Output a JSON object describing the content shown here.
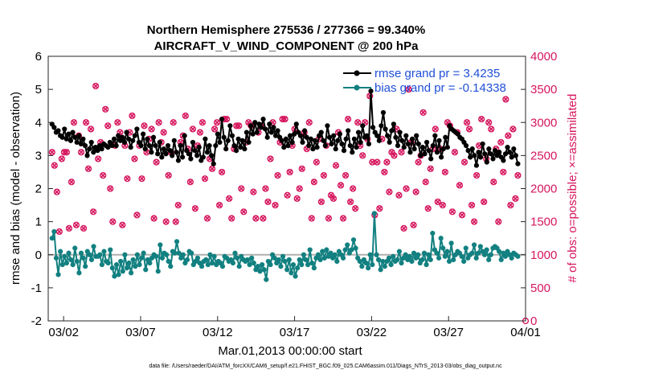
{
  "chart_data": {
    "type": "line",
    "title_line1": "Northern Hemisphere 275536 / 277366 = 99.340%",
    "title_line2": "AIRCRAFT_V_WIND_COMPONENT @ 200 hPa",
    "ylabel": "rmse and bias (model - observation)",
    "y2label": "# of obs: o=possible; ×=assimilated",
    "xlabel": "Mar.01,2013 00:00:00 start",
    "footnote": "data file: /Users/raeder/DAI/ATM_forcXX/CAM6_setup/f.e21.FHIST_BGC.f09_025.CAM6assim.011/Diags_NTrS_2013-03/obs_diag_output.nc",
    "ylim": [
      -2,
      6
    ],
    "y2lim": [
      0,
      4000
    ],
    "xlim": [
      0,
      31
    ],
    "x_ticks": [
      {
        "value": 1,
        "label": "03/02"
      },
      {
        "value": 6,
        "label": "03/07"
      },
      {
        "value": 11,
        "label": "03/12"
      },
      {
        "value": 16,
        "label": "03/17"
      },
      {
        "value": 21,
        "label": "03/22"
      },
      {
        "value": 26,
        "label": "03/27"
      },
      {
        "value": 31,
        "label": "04/01"
      }
    ],
    "y_ticks": [
      {
        "value": 6,
        "label": "6"
      },
      {
        "value": 5,
        "label": "5"
      },
      {
        "value": 4,
        "label": "4"
      },
      {
        "value": 3,
        "label": "3"
      },
      {
        "value": 2,
        "label": "2"
      },
      {
        "value": 1,
        "label": "1"
      },
      {
        "value": 0,
        "label": "0"
      },
      {
        "value": -1,
        "label": "-1"
      },
      {
        "value": -2,
        "label": "-2"
      }
    ],
    "y2_ticks": [
      {
        "value": 4000,
        "label": "4000"
      },
      {
        "value": 3500,
        "label": "3500"
      },
      {
        "value": 3000,
        "label": "3000"
      },
      {
        "value": 2500,
        "label": "2500"
      },
      {
        "value": 2000,
        "label": "2000"
      },
      {
        "value": 1500,
        "label": "1500"
      },
      {
        "value": 1000,
        "label": "1000"
      },
      {
        "value": 500,
        "label": "500"
      },
      {
        "value": 0,
        "label": "0"
      }
    ],
    "legend_position": "top-right",
    "series": [
      {
        "name": "rmse grand pr = 3.4235",
        "color": "#000000",
        "axis": "left",
        "style": "line-marker",
        "values": [
          3.95,
          3.85,
          3.7,
          3.75,
          3.6,
          3.55,
          3.8,
          3.5,
          3.65,
          3.45,
          3.7,
          3.55,
          3.4,
          3.6,
          3.35,
          3.5,
          3.3,
          3.0,
          3.2,
          3.4,
          3.1,
          3.25,
          3.15,
          3.3,
          3.2,
          3.35,
          3.3,
          3.25,
          3.4,
          3.3,
          3.5,
          3.3,
          3.6,
          3.45,
          3.55,
          3.4,
          3.7,
          3.5,
          3.25,
          3.45,
          3.6,
          3.8,
          3.4,
          3.3,
          3.65,
          3.2,
          3.5,
          3.3,
          3.1,
          3.55,
          3.3,
          3.05,
          3.4,
          2.95,
          3.2,
          3.05,
          3.3,
          3.15,
          3.0,
          3.45,
          3.1,
          2.85,
          3.3,
          2.95,
          3.6,
          3.15,
          3.05,
          2.9,
          3.4,
          3.15,
          3.0,
          3.25,
          2.85,
          2.95,
          3.5,
          3.1,
          3.3,
          3.0,
          2.75,
          3.3,
          3.65,
          3.4,
          4.1,
          3.55,
          3.2,
          3.45,
          3.9,
          3.6,
          3.3,
          3.15,
          3.5,
          3.25,
          3.45,
          3.2,
          3.7,
          3.4,
          3.9,
          3.65,
          4.0,
          3.7,
          3.95,
          3.85,
          4.1,
          3.8,
          3.55,
          3.95,
          3.7,
          3.85,
          3.6,
          3.75,
          3.55,
          3.45,
          3.25,
          3.5,
          3.3,
          3.6,
          3.4,
          3.65,
          3.95,
          3.7,
          3.6,
          3.4,
          3.75,
          3.55,
          3.3,
          3.5,
          3.2,
          3.45,
          3.25,
          3.6,
          3.7,
          3.45,
          3.3,
          3.9,
          3.55,
          3.35,
          3.6,
          3.2,
          3.45,
          3.65,
          3.35,
          3.15,
          3.5,
          3.75,
          3.3,
          3.1,
          3.5,
          3.25,
          3.7,
          3.4,
          3.9,
          3.55,
          3.6,
          3.35,
          4.95,
          3.85,
          3.7,
          3.6,
          3.45,
          3.9,
          4.3,
          3.8,
          3.6,
          3.4,
          3.75,
          3.95,
          3.55,
          3.3,
          3.7,
          3.45,
          3.25,
          3.6,
          3.35,
          3.1,
          3.5,
          3.2,
          3.6,
          3.35,
          3.0,
          3.25,
          3.05,
          3.4,
          3.15,
          2.9,
          3.3,
          3.6,
          3.1,
          3.45,
          2.95,
          3.2,
          3.55,
          3.25,
          3.9,
          3.8,
          3.75,
          3.7,
          3.65,
          3.55,
          3.5,
          3.4,
          3.3,
          3.15,
          2.95,
          3.2,
          3.0,
          2.7,
          3.1,
          2.95,
          3.35,
          3.05,
          2.8,
          3.2,
          3.05,
          2.9,
          3.15,
          3.0,
          3.1,
          2.95,
          2.85,
          3.05,
          3.25,
          3.1,
          2.95,
          3.2,
          3.0,
          2.75
        ]
      },
      {
        "name": "bias grand pr = -0.14338",
        "color": "#128080",
        "axis": "left",
        "style": "line-marker",
        "values": [
          0.5,
          0.7,
          -0.1,
          -0.6,
          0.1,
          -0.3,
          -0.05,
          -0.25,
          0.05,
          -0.15,
          -0.3,
          0.2,
          -0.2,
          -0.55,
          0.05,
          -0.1,
          -0.35,
          0.1,
          0.0,
          -0.15,
          0.25,
          -0.05,
          -0.05,
          0.0,
          -0.3,
          0.1,
          -0.2,
          -0.25,
          0.15,
          -0.4,
          -0.65,
          -0.3,
          -0.6,
          -0.2,
          -0.5,
          0.0,
          -0.4,
          -0.25,
          -0.55,
          -0.15,
          -0.35,
          0.0,
          -0.3,
          -0.1,
          0.05,
          -0.45,
          -0.15,
          -0.25,
          -0.1,
          0.0,
          -0.05,
          -0.5,
          0.3,
          -0.1,
          0.05,
          0.0,
          -0.2,
          -0.35,
          0.1,
          0.05,
          0.4,
          0.05,
          -0.1,
          0.0,
          -0.25,
          -0.15,
          0.1,
          0.05,
          -0.3,
          -0.2,
          -0.1,
          -0.25,
          -0.35,
          -0.2,
          -0.15,
          -0.3,
          0.0,
          -0.25,
          -0.05,
          -0.3,
          -0.2,
          -0.25,
          -0.35,
          -0.05,
          -0.1,
          -0.2,
          -0.15,
          -0.25,
          0.05,
          -0.1,
          -0.35,
          -0.05,
          -0.15,
          -0.2,
          -0.15,
          -0.3,
          -0.1,
          -0.25,
          -0.45,
          -0.35,
          -0.5,
          -0.3,
          -0.45,
          -0.75,
          -0.2,
          -0.3,
          0.0,
          -0.1,
          -0.25,
          -0.15,
          -0.35,
          -0.05,
          -0.2,
          -0.45,
          -0.15,
          -0.55,
          -0.3,
          -0.65,
          -0.4,
          -0.15,
          -0.3,
          0.0,
          -0.15,
          -0.3,
          0.15,
          -0.25,
          -0.4,
          -0.1,
          0.0,
          -0.15,
          0.1,
          -0.1,
          0.15,
          -0.05,
          0.05,
          -0.1,
          0.0,
          -0.2,
          0.1,
          0.0,
          -0.1,
          0.15,
          0.3,
          0.05,
          0.15,
          0.45,
          0.2,
          -0.1,
          -0.2,
          -0.35,
          -0.15,
          -0.25,
          -0.4,
          0.0,
          -0.3,
          1.25,
          0.0,
          -0.15,
          -0.45,
          -0.2,
          -0.35,
          -0.2,
          -0.1,
          -0.3,
          -0.05,
          -0.2,
          -0.15,
          0.1,
          -0.25,
          -0.1,
          0.0,
          -0.15,
          -0.05,
          -0.2,
          0.05,
          -0.1,
          0.0,
          -0.25,
          -0.15,
          0.05,
          -0.3,
          0.0,
          -0.15,
          0.65,
          0.15,
          0.05,
          -0.1,
          0.5,
          0.2,
          -0.05,
          0.1,
          -0.2,
          0.35,
          -0.15,
          0.0,
          0.1,
          0.05,
          -0.05,
          -0.2,
          0.2,
          -0.1,
          0.0,
          0.05,
          0.3,
          -0.1,
          0.05,
          0.25,
          0.1,
          0.0,
          0.15,
          -0.15,
          0.0,
          0.2,
          0.25,
          0.2,
          0.1,
          -0.15,
          0.05,
          -0.05,
          0.1,
          0.0,
          -0.1,
          0.05,
          0.0,
          -0.05
        ]
      },
      {
        "name": "obs possible",
        "color": "#d6165e",
        "axis": "right",
        "style": "circle-markers",
        "values": [
          2550,
          2350,
          1950,
          1350,
          2450,
          2550,
          2550,
          1400,
          2100,
          3000,
          1450,
          2800,
          2550,
          1400,
          3000,
          2300,
          2900,
          1650,
          3550,
          2450,
          2700,
          2200,
          3200,
          2950,
          2000,
          1500,
          2650,
          3000,
          2850,
          1450,
          2650,
          2150,
          2850,
          3100,
          2450,
          1600,
          2650,
          2150,
          2950,
          2550,
          2750,
          2900,
          1550,
          2400,
          3000,
          2700,
          2850,
          1500,
          2200,
          2550,
          3000,
          1500,
          1750,
          2700,
          2800,
          3100,
          2600,
          2100,
          2900,
          1700,
          2650,
          2850,
          3000,
          2150,
          1550,
          2450,
          2300,
          2900,
          3000,
          1750,
          2250,
          3050,
          3050,
          1850,
          1550,
          2600,
          2950,
          2950,
          2000,
          1650,
          2700,
          3000,
          2950,
          1950,
          1550,
          2850,
          2950,
          1550,
          2000,
          1800,
          2450,
          3000,
          1750,
          2200,
          2700,
          3050,
          3050,
          1900,
          2250,
          2650,
          2900,
          1850,
          2000,
          2300,
          2850,
          2600,
          3000,
          1550,
          2100,
          2400,
          2750,
          1800,
          2200,
          2650,
          1550,
          1900,
          1850,
          2350,
          2850,
          2050,
          1550,
          2200,
          3050,
          1800,
          2000,
          1700,
          3000,
          2650,
          2500,
          3000,
          2750,
          3400,
          2400,
          1600,
          2400,
          1700,
          2750,
          2250,
          2400,
          1950,
          2550,
          2500,
          2900,
          1900,
          2550,
          1400,
          2000,
          3500,
          2700,
          1450,
          1950,
          2400,
          2500,
          3150,
          2100,
          1700,
          2300,
          2600,
          2900,
          1800,
          2600,
          1750,
          2250,
          3000,
          2950,
          1650,
          2550,
          2850,
          2050,
          1600,
          2400,
          3000,
          2900,
          1750,
          1500,
          2200,
          2650,
          3050,
          1800,
          2450,
          3000,
          2900,
          2100,
          2600,
          1500,
          2700,
          2250,
          3350,
          2800,
          1750,
          2900,
          1850,
          2200
        ]
      },
      {
        "name": "obs assimilated",
        "color": "#d6165e",
        "axis": "right",
        "style": "x-markers",
        "values": [
          2550,
          2350,
          1950,
          1350,
          2450,
          2550,
          2550,
          1400,
          2100,
          3000,
          1450,
          2800,
          2550,
          1400,
          3000,
          2300,
          2900,
          1650,
          3550,
          2450,
          2700,
          2200,
          3200,
          2950,
          2000,
          1500,
          2650,
          3000,
          2850,
          1450,
          2650,
          2150,
          2850,
          3100,
          2450,
          1600,
          2650,
          2150,
          2950,
          2550,
          2750,
          2900,
          1550,
          2400,
          3000,
          2700,
          2850,
          1500,
          2200,
          2550,
          3000,
          1500,
          1750,
          2700,
          2800,
          3100,
          2600,
          2100,
          2900,
          1700,
          2650,
          2850,
          3000,
          2150,
          1550,
          2450,
          2300,
          2900,
          3000,
          1750,
          2250,
          3050,
          3050,
          1850,
          1550,
          2600,
          2950,
          2950,
          2000,
          1650,
          2700,
          3000,
          2950,
          1950,
          1550,
          2850,
          2950,
          1550,
          2000,
          1800,
          2450,
          3000,
          1750,
          2200,
          2700,
          3050,
          3050,
          1900,
          2250,
          2650,
          2900,
          1850,
          2000,
          2300,
          2850,
          2600,
          3000,
          1550,
          2100,
          2400,
          2750,
          1800,
          2200,
          2650,
          1550,
          1900,
          1850,
          2350,
          2850,
          2050,
          1550,
          2200,
          3050,
          1800,
          2000,
          1700,
          3000,
          2650,
          2500,
          3000,
          2750,
          3400,
          2400,
          1600,
          2400,
          1700,
          2750,
          2250,
          2400,
          1950,
          2550,
          2500,
          2900,
          1900,
          2550,
          1400,
          2000,
          3500,
          2700,
          1450,
          1950,
          2400,
          2500,
          3150,
          2100,
          1700,
          2300,
          2600,
          2900,
          1800,
          2600,
          1750,
          2250,
          3000,
          2950,
          1650,
          2550,
          2850,
          2050,
          1600,
          2400,
          3000,
          2900,
          1750,
          1500,
          2200,
          2650,
          3050,
          1800,
          2450,
          3000,
          2900,
          2100,
          2600,
          1500,
          2700,
          2250,
          3350,
          2800,
          1750,
          2900,
          1850,
          2200
        ]
      }
    ]
  }
}
